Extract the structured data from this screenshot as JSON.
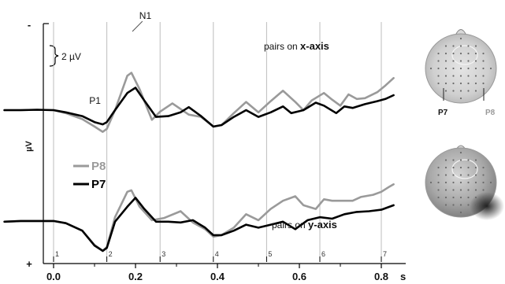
{
  "chart_data": {
    "type": "line",
    "title": "",
    "xlabel": "s",
    "ylabel": "µV",
    "y_top_sign": "-",
    "y_bottom_sign": "+",
    "scale_bar_label": "2 µV",
    "xlim": [
      -0.12,
      0.83
    ],
    "x_ticks": [
      0.0,
      0.2,
      0.4,
      0.6,
      0.8
    ],
    "x_tick_labels": [
      "0.0",
      "0.2",
      "0.4",
      "0.6",
      "0.8"
    ],
    "markers": [
      {
        "label": "1",
        "x": 0.0
      },
      {
        "label": "2",
        "x": 0.13
      },
      {
        "label": "3",
        "x": 0.26
      },
      {
        "label": "4",
        "x": 0.39
      },
      {
        "label": "5",
        "x": 0.52
      },
      {
        "label": "6",
        "x": 0.65
      },
      {
        "label": "7",
        "x": 0.8
      }
    ],
    "legend": [
      {
        "name": "P8",
        "color": "#9a9a9a"
      },
      {
        "name": "P7",
        "color": "#000000"
      }
    ],
    "panels": [
      {
        "annotation_small": "pairs on ",
        "annotation_big": "x-axis",
        "peak_labels": [
          {
            "text": "N1",
            "x": 0.19
          },
          {
            "text": "P1",
            "x": 0.11
          }
        ],
        "series": [
          {
            "name": "P8",
            "color": "#9a9a9a",
            "x": [
              -0.12,
              -0.08,
              -0.04,
              0.0,
              0.03,
              0.07,
              0.1,
              0.12,
              0.13,
              0.15,
              0.18,
              0.19,
              0.21,
              0.24,
              0.26,
              0.29,
              0.33,
              0.36,
              0.39,
              0.41,
              0.44,
              0.47,
              0.5,
              0.53,
              0.56,
              0.59,
              0.61,
              0.63,
              0.66,
              0.68,
              0.7,
              0.72,
              0.74,
              0.76,
              0.79,
              0.81,
              0.83
            ],
            "y": [
              0.0,
              0.0,
              0.05,
              0.0,
              -0.4,
              -1.2,
              -2.2,
              -2.9,
              -2.5,
              0.0,
              4.6,
              5.0,
              2.8,
              -1.3,
              -0.2,
              0.9,
              -0.6,
              -0.9,
              -2.2,
              -2.0,
              -0.4,
              1.1,
              -0.3,
              1.2,
              2.6,
              1.1,
              0.0,
              1.3,
              2.3,
              1.4,
              0.6,
              2.1,
              1.5,
              1.6,
              2.4,
              3.3,
              4.3
            ]
          },
          {
            "name": "P7",
            "color": "#000000",
            "x": [
              -0.12,
              -0.08,
              -0.04,
              0.0,
              0.03,
              0.07,
              0.1,
              0.12,
              0.13,
              0.15,
              0.18,
              0.2,
              0.22,
              0.25,
              0.28,
              0.31,
              0.33,
              0.36,
              0.39,
              0.41,
              0.44,
              0.47,
              0.5,
              0.53,
              0.56,
              0.58,
              0.61,
              0.64,
              0.66,
              0.69,
              0.71,
              0.73,
              0.76,
              0.79,
              0.81,
              0.83
            ],
            "y": [
              0.0,
              0.0,
              0.05,
              0.0,
              -0.3,
              -0.8,
              -1.6,
              -1.9,
              -1.6,
              0.0,
              2.3,
              3.0,
              1.4,
              -0.9,
              -0.8,
              -0.3,
              0.4,
              -0.8,
              -2.2,
              -2.0,
              -0.9,
              0.0,
              -0.9,
              -0.3,
              0.5,
              -0.4,
              0.0,
              1.0,
              0.6,
              -0.4,
              0.5,
              0.3,
              0.8,
              1.2,
              1.5,
              2.0
            ]
          }
        ]
      },
      {
        "annotation_small": "pairs on ",
        "annotation_big": "y-axis",
        "peak_labels": [],
        "series": [
          {
            "name": "P8",
            "color": "#9a9a9a",
            "x": [
              -0.12,
              -0.08,
              -0.04,
              0.0,
              0.03,
              0.07,
              0.1,
              0.12,
              0.13,
              0.15,
              0.18,
              0.19,
              0.21,
              0.24,
              0.27,
              0.31,
              0.34,
              0.37,
              0.39,
              0.41,
              0.44,
              0.47,
              0.5,
              0.53,
              0.56,
              0.59,
              0.61,
              0.64,
              0.66,
              0.68,
              0.71,
              0.73,
              0.75,
              0.78,
              0.8,
              0.82,
              0.83
            ],
            "y": [
              -0.4,
              -0.3,
              -0.3,
              -0.3,
              -0.6,
              -1.6,
              -3.5,
              -4.3,
              -3.8,
              0.2,
              3.6,
              3.8,
              1.6,
              -0.2,
              0.1,
              1.0,
              -0.5,
              -1.4,
              -2.4,
              -2.2,
              -1.2,
              0.6,
              -0.2,
              1.3,
              2.4,
              3.0,
              1.8,
              1.3,
              2.6,
              2.4,
              2.4,
              2.4,
              2.9,
              3.2,
              3.6,
              4.3,
              4.6
            ]
          },
          {
            "name": "P7",
            "color": "#000000",
            "x": [
              -0.12,
              -0.08,
              -0.04,
              0.0,
              0.03,
              0.07,
              0.1,
              0.12,
              0.13,
              0.15,
              0.18,
              0.2,
              0.22,
              0.25,
              0.28,
              0.31,
              0.34,
              0.37,
              0.39,
              0.41,
              0.44,
              0.47,
              0.5,
              0.53,
              0.56,
              0.59,
              0.62,
              0.65,
              0.68,
              0.71,
              0.74,
              0.77,
              0.8,
              0.83
            ],
            "y": [
              -0.4,
              -0.3,
              -0.3,
              -0.3,
              -0.6,
              -1.6,
              -3.6,
              -4.3,
              -3.9,
              -0.4,
              1.6,
              2.8,
              1.4,
              -0.4,
              -0.4,
              -0.5,
              -0.2,
              -1.2,
              -2.2,
              -2.2,
              -1.6,
              -0.8,
              -1.2,
              -0.8,
              -0.4,
              -1.4,
              -0.2,
              0.2,
              0.0,
              0.6,
              0.9,
              1.0,
              1.2,
              1.8
            ]
          }
        ]
      }
    ],
    "topomaps": [
      {
        "left_label": "P7",
        "right_label": "P8"
      },
      {
        "left_label": "",
        "right_label": ""
      }
    ]
  }
}
